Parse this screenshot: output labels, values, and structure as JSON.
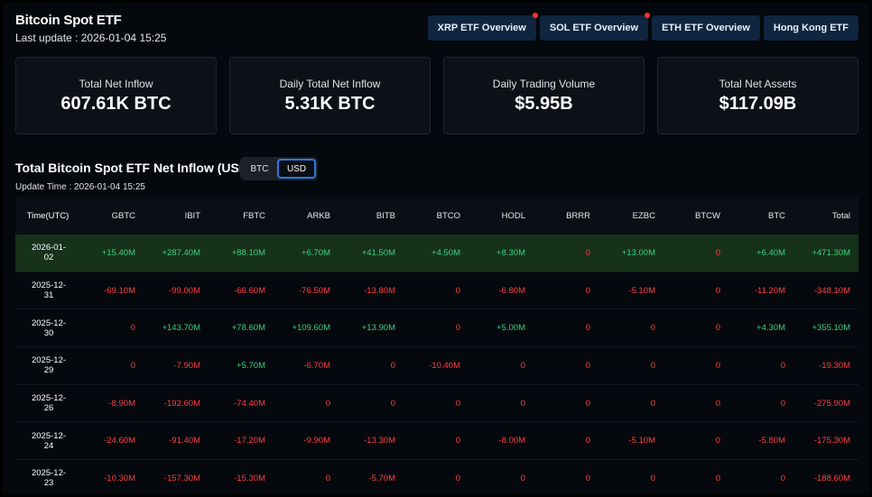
{
  "header": {
    "title": "Bitcoin Spot ETF",
    "last_update": "Last update : 2026-01-04 15:25"
  },
  "nav": [
    {
      "label": "XRP ETF Overview",
      "dot": true
    },
    {
      "label": "SOL ETF Overview",
      "dot": true
    },
    {
      "label": "ETH ETF Overview",
      "dot": false
    },
    {
      "label": "Hong Kong ETF",
      "dot": false
    }
  ],
  "cards": [
    {
      "label": "Total Net Inflow",
      "value": "607.61K BTC"
    },
    {
      "label": "Daily Total Net Inflow",
      "value": "5.31K BTC"
    },
    {
      "label": "Daily Trading Volume",
      "value": "$5.95B"
    },
    {
      "label": "Total Net Assets",
      "value": "$117.09B"
    }
  ],
  "section": {
    "title": "Total Bitcoin Spot ETF Net Inflow (USD)",
    "toggle": [
      "BTC",
      "USD"
    ],
    "toggle_active": "USD",
    "update_time": "Update Time : 2026-01-04 15:25"
  },
  "table": {
    "columns": [
      "Time(UTC)",
      "GBTC",
      "IBIT",
      "FBTC",
      "ARKB",
      "BITB",
      "BTCO",
      "HODL",
      "BRRR",
      "EZBC",
      "BTCW",
      "BTC",
      "Total"
    ],
    "rows": [
      [
        "2026-01-02",
        "+15.40M",
        "+287.40M",
        "+88.10M",
        "+6.70M",
        "+41.50M",
        "+4.50M",
        "+8.30M",
        "0",
        "+13.00M",
        "0",
        "+6.40M",
        "+471.30M"
      ],
      [
        "2025-12-31",
        "-69.10M",
        "-99.00M",
        "-66.60M",
        "-76.50M",
        "-13.80M",
        "0",
        "-6.80M",
        "0",
        "-5.10M",
        "0",
        "-11.20M",
        "-348.10M"
      ],
      [
        "2025-12-30",
        "0",
        "+143.70M",
        "+78.60M",
        "+109.60M",
        "+13.90M",
        "0",
        "+5.00M",
        "0",
        "0",
        "0",
        "+4.30M",
        "+355.10M"
      ],
      [
        "2025-12-29",
        "0",
        "-7.90M",
        "+5.70M",
        "-6.70M",
        "0",
        "-10.40M",
        "0",
        "0",
        "0",
        "0",
        "0",
        "-19.30M"
      ],
      [
        "2025-12-26",
        "-8.90M",
        "-192.60M",
        "-74.40M",
        "0",
        "0",
        "0",
        "0",
        "0",
        "0",
        "0",
        "0",
        "-275.90M"
      ],
      [
        "2025-12-24",
        "-24.60M",
        "-91.40M",
        "-17.20M",
        "-9.90M",
        "-13.30M",
        "0",
        "-8.00M",
        "0",
        "-5.10M",
        "0",
        "-5.80M",
        "-175.30M"
      ],
      [
        "2025-12-23",
        "-10.30M",
        "-157.30M",
        "-15.30M",
        "0",
        "-5.70M",
        "0",
        "0",
        "0",
        "0",
        "0",
        "0",
        "-188.60M"
      ]
    ],
    "highlight_row": 0
  },
  "colors": {
    "positive": "#3dd07f",
    "negative": "#ff4040",
    "accent": "#2a7ae0"
  }
}
